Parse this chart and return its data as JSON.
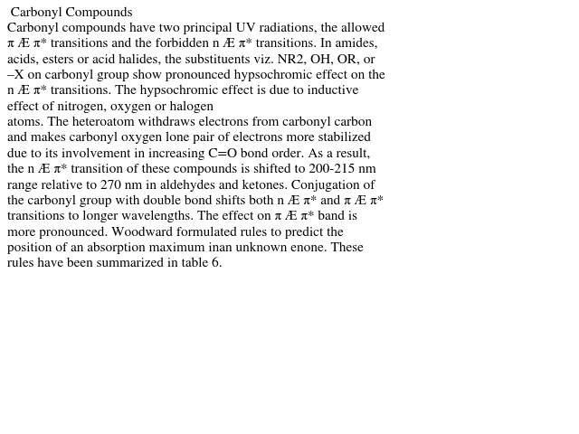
{
  "title": " Carbonyl Compounds",
  "background_color": "#ffffff",
  "text_color": "#000000",
  "title_fontsize": 11.0,
  "body_fontsize": 11.0,
  "font_family": "STIXGeneral",
  "all_text": " Carbonyl Compounds\nCarbonyl compounds have two principal UV radiations, the allowed\nπ Æ π* transitions and the forbidden n Æ π* transitions. In amides,\nacids, esters or acid halides, the substituents viz. NR2, OH, OR, or\n–X on carbonyl group show pronounced hypsochromic effect on the\nn Æ π* transitions. The hypsochromic effect is due to inductive\neffect of nitrogen, oxygen or halogen\natoms. The heteroatom withdraws electrons from carbonyl carbon\nand makes carbonyl oxygen lone pair of electrons more stabilized\ndue to its involvement in increasing C=O bond order. As a result,\nthe n Æ π* transition of these compounds is shifted to 200-215 nm\nrange relative to 270 nm in aldehydes and ketones. Conjugation of\nthe carbonyl group with double bond shifts both n Æ π* and π Æ π*\ntransitions to longer wavelengths. The effect on π Æ π* band is\nmore pronounced. Woodward formulated rules to predict the\nposition of an absorption maximum inan unknown enone. These\nrules have been summarized in table 6."
}
